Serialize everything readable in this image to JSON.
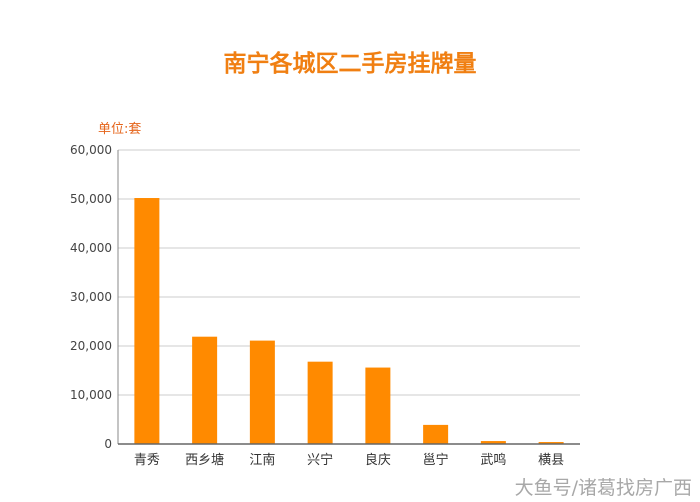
{
  "chart_data": {
    "type": "bar",
    "title": "南宁各城区二手房挂牌量",
    "unit_label": "单位:套",
    "categories": [
      "青秀",
      "西乡塘",
      "江南",
      "兴宁",
      "良庆",
      "邕宁",
      "武鸣",
      "横县"
    ],
    "values": [
      50200,
      21900,
      21100,
      16800,
      15600,
      3900,
      600,
      400
    ],
    "ylim": [
      0,
      60000
    ],
    "yticks": [
      "0",
      "10,000",
      "20,000",
      "30,000",
      "40,000",
      "50,000",
      "60,000"
    ],
    "grid": true,
    "bar_color": "#ff8a00",
    "title_color": "#f07f12"
  },
  "watermark": "大鱼号/诸葛找房广西"
}
